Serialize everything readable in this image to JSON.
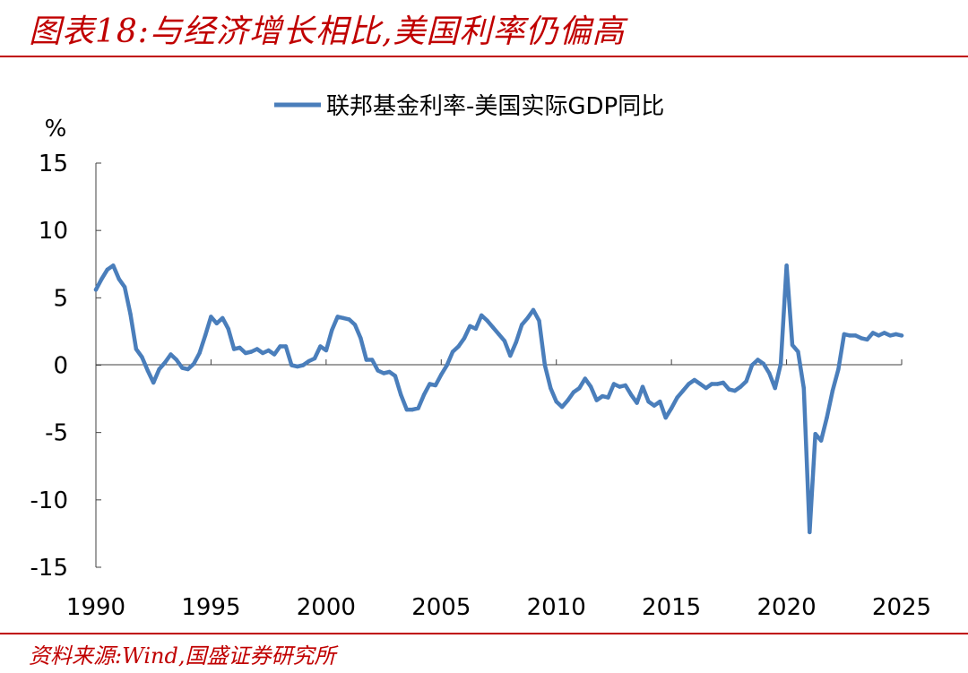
{
  "figure": {
    "title": "图表18:与经济增长相比,美国利率仍偏高",
    "source": "资料来源:Wind,国盛证券研究所",
    "accent_color": "#c00000"
  },
  "chart_data": {
    "type": "line",
    "ylabel": "%",
    "ylim": [
      -15,
      15
    ],
    "yticks": [
      15,
      10,
      5,
      0,
      -5,
      -10,
      -15
    ],
    "xlim": [
      1990,
      2025
    ],
    "xticks": [
      1990,
      1995,
      2000,
      2005,
      2010,
      2015,
      2020,
      2025
    ],
    "grid": false,
    "legend_position": "top-center",
    "series": [
      {
        "name": "联邦基金利率-美国实际GDP同比",
        "color": "#4a7ebb",
        "x": [
          1990,
          1990.25,
          1990.5,
          1990.75,
          1991,
          1991.25,
          1991.5,
          1991.75,
          1992,
          1992.25,
          1992.5,
          1992.75,
          1993,
          1993.25,
          1993.5,
          1993.75,
          1994,
          1994.25,
          1994.5,
          1994.75,
          1995,
          1995.25,
          1995.5,
          1995.75,
          1996,
          1996.25,
          1996.5,
          1996.75,
          1997,
          1997.25,
          1997.5,
          1997.75,
          1998,
          1998.25,
          1998.5,
          1998.75,
          1999,
          1999.25,
          1999.5,
          1999.75,
          2000,
          2000.25,
          2000.5,
          2000.75,
          2001,
          2001.25,
          2001.5,
          2001.75,
          2002,
          2002.25,
          2002.5,
          2002.75,
          2003,
          2003.25,
          2003.5,
          2003.75,
          2004,
          2004.25,
          2004.5,
          2004.75,
          2005,
          2005.25,
          2005.5,
          2005.75,
          2006,
          2006.25,
          2006.5,
          2006.75,
          2007,
          2007.25,
          2007.5,
          2007.75,
          2008,
          2008.25,
          2008.5,
          2008.75,
          2009,
          2009.25,
          2009.5,
          2009.75,
          2010,
          2010.25,
          2010.5,
          2010.75,
          2011,
          2011.25,
          2011.5,
          2011.75,
          2012,
          2012.25,
          2012.5,
          2012.75,
          2013,
          2013.25,
          2013.5,
          2013.75,
          2014,
          2014.25,
          2014.5,
          2014.75,
          2015,
          2015.25,
          2015.5,
          2015.75,
          2016,
          2016.25,
          2016.5,
          2016.75,
          2017,
          2017.25,
          2017.5,
          2017.75,
          2018,
          2018.25,
          2018.5,
          2018.75,
          2019,
          2019.25,
          2019.5,
          2019.75,
          2020,
          2020.25,
          2020.5,
          2020.75,
          2021,
          2021.25,
          2021.5,
          2021.75,
          2022,
          2022.25,
          2022.5,
          2022.75,
          2023,
          2023.25,
          2023.5,
          2023.75,
          2024,
          2024.25,
          2024.5,
          2024.75,
          2025
        ],
        "values": [
          5.6,
          6.4,
          7.1,
          7.4,
          6.4,
          5.8,
          3.8,
          1.2,
          0.6,
          -0.4,
          -1.3,
          -0.3,
          0.2,
          0.8,
          0.4,
          -0.2,
          -0.3,
          0.1,
          0.9,
          2.2,
          3.6,
          3.1,
          3.5,
          2.7,
          1.2,
          1.3,
          0.9,
          1.0,
          1.2,
          0.9,
          1.1,
          0.8,
          1.4,
          1.4,
          0.0,
          -0.1,
          0.0,
          0.3,
          0.5,
          1.4,
          1.1,
          2.6,
          3.6,
          3.5,
          3.4,
          3.0,
          2.0,
          0.4,
          0.4,
          -0.4,
          -0.6,
          -0.5,
          -0.8,
          -2.2,
          -3.3,
          -3.3,
          -3.2,
          -2.2,
          -1.4,
          -1.5,
          -0.7,
          0.0,
          1.0,
          1.4,
          2.0,
          2.9,
          2.7,
          3.7,
          3.3,
          2.8,
          2.3,
          1.8,
          0.7,
          1.7,
          3.0,
          3.5,
          4.1,
          3.3,
          0.0,
          -1.7,
          -2.7,
          -3.1,
          -2.6,
          -2.0,
          -1.7,
          -1.0,
          -1.6,
          -2.6,
          -2.3,
          -2.4,
          -1.4,
          -1.6,
          -1.5,
          -2.2,
          -2.8,
          -1.6,
          -2.7,
          -3.0,
          -2.7,
          -3.9,
          -3.2,
          -2.4,
          -1.9,
          -1.4,
          -1.1,
          -1.4,
          -1.7,
          -1.4,
          -1.4,
          -1.3,
          -1.8,
          -1.9,
          -1.6,
          -1.2,
          0.0,
          0.4,
          0.1,
          -0.6,
          -1.7,
          0.1,
          7.4,
          1.5,
          1.0,
          -1.7,
          -12.4,
          -5.1,
          -5.6,
          -3.9,
          -1.9,
          -0.3,
          2.3,
          2.2,
          2.2,
          2.0,
          1.9,
          2.4,
          2.2,
          2.4,
          2.2,
          2.3,
          2.2
        ]
      }
    ]
  }
}
